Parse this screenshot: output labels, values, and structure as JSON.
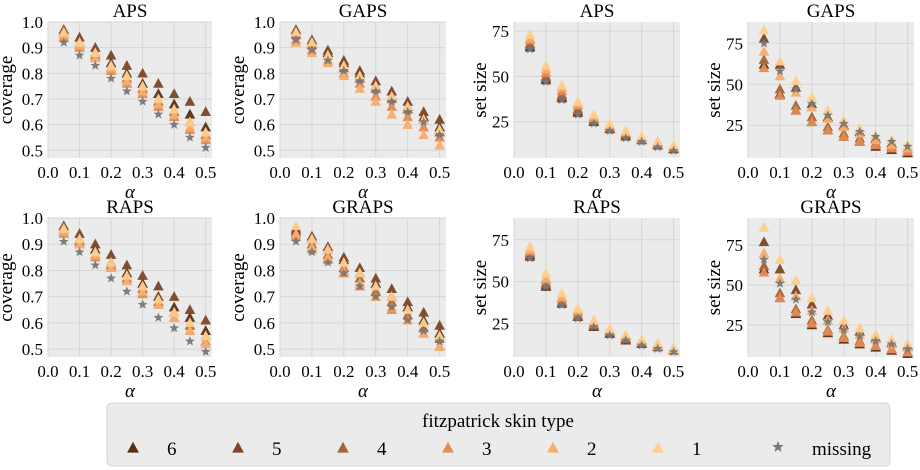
{
  "figure": {
    "legend": {
      "title": "fitzpatrick skin type",
      "placement": "bottom-center",
      "entries": [
        {
          "label": "6",
          "marker": "triangle",
          "color": "#5b2f14"
        },
        {
          "label": "5",
          "marker": "triangle",
          "color": "#7d4626"
        },
        {
          "label": "4",
          "marker": "triangle",
          "color": "#a8653a"
        },
        {
          "label": "3",
          "marker": "triangle",
          "color": "#e58b53"
        },
        {
          "label": "2",
          "marker": "triangle",
          "color": "#f6ad6e"
        },
        {
          "label": "1",
          "marker": "triangle",
          "color": "#fecf8f"
        },
        {
          "label": "missing",
          "marker": "star",
          "color": "#777777"
        }
      ]
    },
    "background": "#ebebeb",
    "grid": true
  },
  "chart_data": [
    {
      "type": "scatter",
      "title": "APS",
      "xlabel": "α",
      "ylabel": "coverage",
      "xlim": [
        0.0,
        0.52
      ],
      "ylim": [
        0.47,
        1.0
      ],
      "xticks": [
        "0.0",
        "0.1",
        "0.2",
        "0.3",
        "0.4",
        "0.5"
      ],
      "yticks": [
        "0.5",
        "0.6",
        "0.7",
        "0.8",
        "0.9",
        "1.0"
      ],
      "x": [
        0.05,
        0.1,
        0.15,
        0.2,
        0.25,
        0.3,
        0.35,
        0.4,
        0.45,
        0.5
      ],
      "series": [
        {
          "name": "6",
          "values": [
            0.96,
            0.92,
            0.88,
            0.84,
            0.8,
            0.76,
            0.72,
            0.68,
            0.64,
            0.59
          ]
        },
        {
          "name": "5",
          "values": [
            0.97,
            0.94,
            0.9,
            0.87,
            0.83,
            0.8,
            0.76,
            0.72,
            0.69,
            0.65
          ]
        },
        {
          "name": "4",
          "values": [
            0.95,
            0.91,
            0.87,
            0.82,
            0.78,
            0.74,
            0.69,
            0.65,
            0.61,
            0.56
          ]
        },
        {
          "name": "3",
          "values": [
            0.94,
            0.9,
            0.86,
            0.81,
            0.76,
            0.72,
            0.67,
            0.63,
            0.58,
            0.54
          ]
        },
        {
          "name": "2",
          "values": [
            0.95,
            0.91,
            0.86,
            0.82,
            0.77,
            0.73,
            0.68,
            0.64,
            0.59,
            0.55
          ]
        },
        {
          "name": "1",
          "values": [
            0.96,
            0.92,
            0.88,
            0.83,
            0.79,
            0.75,
            0.7,
            0.66,
            0.61,
            0.57
          ]
        },
        {
          "name": "missing",
          "values": [
            0.92,
            0.87,
            0.83,
            0.78,
            0.73,
            0.69,
            0.64,
            0.6,
            0.55,
            0.51
          ]
        }
      ]
    },
    {
      "type": "scatter",
      "title": "GAPS",
      "xlabel": "α",
      "ylabel": "coverage",
      "xlim": [
        0.0,
        0.52
      ],
      "ylim": [
        0.47,
        1.0
      ],
      "xticks": [
        "0.0",
        "0.1",
        "0.2",
        "0.3",
        "0.4",
        "0.5"
      ],
      "yticks": [
        "0.5",
        "0.6",
        "0.7",
        "0.8",
        "0.9",
        "1.0"
      ],
      "x": [
        0.05,
        0.1,
        0.15,
        0.2,
        0.25,
        0.3,
        0.35,
        0.4,
        0.45,
        0.5
      ],
      "series": [
        {
          "name": "6",
          "values": [
            0.96,
            0.92,
            0.88,
            0.84,
            0.8,
            0.75,
            0.71,
            0.67,
            0.63,
            0.59
          ]
        },
        {
          "name": "5",
          "values": [
            0.97,
            0.93,
            0.89,
            0.85,
            0.81,
            0.77,
            0.73,
            0.69,
            0.65,
            0.62
          ]
        },
        {
          "name": "4",
          "values": [
            0.95,
            0.91,
            0.87,
            0.82,
            0.78,
            0.74,
            0.7,
            0.66,
            0.62,
            0.57
          ]
        },
        {
          "name": "3",
          "values": [
            0.93,
            0.89,
            0.85,
            0.8,
            0.76,
            0.71,
            0.67,
            0.63,
            0.59,
            0.55
          ]
        },
        {
          "name": "2",
          "values": [
            0.92,
            0.88,
            0.84,
            0.79,
            0.74,
            0.69,
            0.64,
            0.6,
            0.56,
            0.52
          ]
        },
        {
          "name": "1",
          "values": [
            0.96,
            0.92,
            0.87,
            0.83,
            0.79,
            0.75,
            0.71,
            0.67,
            0.62,
            0.58
          ]
        },
        {
          "name": "missing",
          "values": [
            0.93,
            0.89,
            0.85,
            0.81,
            0.77,
            0.73,
            0.69,
            0.65,
            0.61,
            0.56
          ]
        }
      ]
    },
    {
      "type": "scatter",
      "title": "APS",
      "xlabel": "α",
      "ylabel": "set size",
      "xlim": [
        0.0,
        0.52
      ],
      "ylim": [
        5,
        80
      ],
      "xticks": [
        "0.0",
        "0.1",
        "0.2",
        "0.3",
        "0.4",
        "0.5"
      ],
      "yticks": [
        "25",
        "50",
        "75"
      ],
      "x": [
        0.05,
        0.1,
        0.15,
        0.2,
        0.25,
        0.3,
        0.35,
        0.4,
        0.45,
        0.5
      ],
      "series": [
        {
          "name": "6",
          "values": [
            66,
            48,
            38,
            30,
            25,
            21,
            17,
            15,
            12,
            10
          ]
        },
        {
          "name": "5",
          "values": [
            67,
            49,
            39,
            31,
            25,
            21,
            18,
            15,
            12,
            10
          ]
        },
        {
          "name": "4",
          "values": [
            68,
            50,
            40,
            32,
            26,
            22,
            18,
            15,
            13,
            11
          ]
        },
        {
          "name": "3",
          "values": [
            70,
            52,
            42,
            34,
            27,
            22,
            19,
            16,
            13,
            11
          ]
        },
        {
          "name": "2",
          "values": [
            71,
            54,
            44,
            35,
            28,
            23,
            19,
            16,
            14,
            11
          ]
        },
        {
          "name": "1",
          "values": [
            73,
            56,
            45,
            36,
            29,
            24,
            20,
            17,
            14,
            12
          ]
        },
        {
          "name": "missing",
          "values": [
            65,
            47,
            37,
            29,
            24,
            20,
            16,
            14,
            11,
            9
          ]
        }
      ]
    },
    {
      "type": "scatter",
      "title": "GAPS",
      "xlabel": "α",
      "ylabel": "set size",
      "xlim": [
        0.0,
        0.52
      ],
      "ylim": [
        5,
        88
      ],
      "xticks": [
        "0.0",
        "0.1",
        "0.2",
        "0.3",
        "0.4",
        "0.5"
      ],
      "yticks": [
        "25",
        "50",
        "75"
      ],
      "x": [
        0.05,
        0.1,
        0.15,
        0.2,
        0.25,
        0.3,
        0.35,
        0.4,
        0.45,
        0.5
      ],
      "series": [
        {
          "name": "6",
          "values": [
            62,
            44,
            34,
            27,
            22,
            18,
            15,
            12,
            10,
            8
          ]
        },
        {
          "name": "5",
          "values": [
            78,
            62,
            48,
            38,
            30,
            25,
            21,
            17,
            14,
            11
          ]
        },
        {
          "name": "4",
          "values": [
            65,
            47,
            37,
            30,
            24,
            20,
            17,
            14,
            12,
            9
          ]
        },
        {
          "name": "3",
          "values": [
            60,
            43,
            34,
            27,
            22,
            18,
            15,
            13,
            11,
            9
          ]
        },
        {
          "name": "2",
          "values": [
            70,
            55,
            45,
            36,
            29,
            24,
            20,
            16,
            13,
            11
          ]
        },
        {
          "name": "1",
          "values": [
            83,
            64,
            52,
            42,
            34,
            28,
            23,
            19,
            16,
            13
          ]
        },
        {
          "name": "missing",
          "values": [
            75,
            58,
            47,
            38,
            31,
            26,
            21,
            18,
            15,
            12
          ]
        }
      ]
    },
    {
      "type": "scatter",
      "title": "RAPS",
      "xlabel": "α",
      "ylabel": "coverage",
      "xlim": [
        0.0,
        0.52
      ],
      "ylim": [
        0.47,
        1.0
      ],
      "xticks": [
        "0.0",
        "0.1",
        "0.2",
        "0.3",
        "0.4",
        "0.5"
      ],
      "yticks": [
        "0.5",
        "0.6",
        "0.7",
        "0.8",
        "0.9",
        "1.0"
      ],
      "x": [
        0.05,
        0.1,
        0.15,
        0.2,
        0.25,
        0.3,
        0.35,
        0.4,
        0.45,
        0.5
      ],
      "series": [
        {
          "name": "6",
          "values": [
            0.96,
            0.92,
            0.88,
            0.83,
            0.79,
            0.75,
            0.7,
            0.66,
            0.62,
            0.57
          ]
        },
        {
          "name": "5",
          "values": [
            0.97,
            0.94,
            0.9,
            0.86,
            0.82,
            0.78,
            0.74,
            0.7,
            0.65,
            0.61
          ]
        },
        {
          "name": "4",
          "values": [
            0.95,
            0.91,
            0.86,
            0.82,
            0.77,
            0.73,
            0.68,
            0.64,
            0.59,
            0.55
          ]
        },
        {
          "name": "3",
          "values": [
            0.94,
            0.9,
            0.85,
            0.81,
            0.76,
            0.71,
            0.67,
            0.62,
            0.57,
            0.53
          ]
        },
        {
          "name": "2",
          "values": [
            0.95,
            0.9,
            0.86,
            0.81,
            0.76,
            0.72,
            0.67,
            0.62,
            0.57,
            0.52
          ]
        },
        {
          "name": "1",
          "values": [
            0.96,
            0.92,
            0.87,
            0.83,
            0.78,
            0.74,
            0.69,
            0.64,
            0.6,
            0.55
          ]
        },
        {
          "name": "missing",
          "values": [
            0.91,
            0.87,
            0.82,
            0.77,
            0.72,
            0.67,
            0.62,
            0.58,
            0.53,
            0.49
          ]
        }
      ]
    },
    {
      "type": "scatter",
      "title": "GRAPS",
      "xlabel": "α",
      "ylabel": "coverage",
      "xlim": [
        0.0,
        0.52
      ],
      "ylim": [
        0.47,
        1.0
      ],
      "xticks": [
        "0.0",
        "0.1",
        "0.2",
        "0.3",
        "0.4",
        "0.5"
      ],
      "yticks": [
        "0.5",
        "0.6",
        "0.7",
        "0.8",
        "0.9",
        "1.0"
      ],
      "x": [
        0.05,
        0.1,
        0.15,
        0.2,
        0.25,
        0.3,
        0.35,
        0.4,
        0.45,
        0.5
      ],
      "series": [
        {
          "name": "6",
          "values": [
            0.95,
            0.92,
            0.88,
            0.84,
            0.79,
            0.75,
            0.7,
            0.66,
            0.61,
            0.56
          ]
        },
        {
          "name": "5",
          "values": [
            0.96,
            0.93,
            0.89,
            0.85,
            0.81,
            0.77,
            0.73,
            0.68,
            0.64,
            0.59
          ]
        },
        {
          "name": "4",
          "values": [
            0.94,
            0.9,
            0.86,
            0.81,
            0.77,
            0.72,
            0.68,
            0.63,
            0.58,
            0.54
          ]
        },
        {
          "name": "3",
          "values": [
            0.93,
            0.88,
            0.84,
            0.79,
            0.74,
            0.7,
            0.65,
            0.61,
            0.56,
            0.51
          ]
        },
        {
          "name": "2",
          "values": [
            0.94,
            0.89,
            0.85,
            0.8,
            0.75,
            0.7,
            0.66,
            0.61,
            0.56,
            0.51
          ]
        },
        {
          "name": "1",
          "values": [
            0.97,
            0.92,
            0.88,
            0.83,
            0.79,
            0.74,
            0.7,
            0.65,
            0.6,
            0.55
          ]
        },
        {
          "name": "missing",
          "values": [
            0.91,
            0.87,
            0.83,
            0.79,
            0.74,
            0.7,
            0.66,
            0.61,
            0.57,
            0.53
          ]
        }
      ]
    },
    {
      "type": "scatter",
      "title": "RAPS",
      "xlabel": "α",
      "ylabel": "set size",
      "xlim": [
        0.0,
        0.52
      ],
      "ylim": [
        5,
        88
      ],
      "xticks": [
        "0.0",
        "0.1",
        "0.2",
        "0.3",
        "0.4",
        "0.5"
      ],
      "yticks": [
        "25",
        "50",
        "75"
      ],
      "x": [
        0.05,
        0.1,
        0.15,
        0.2,
        0.25,
        0.3,
        0.35,
        0.4,
        0.45,
        0.5
      ],
      "series": [
        {
          "name": "6",
          "values": [
            65,
            47,
            37,
            29,
            23,
            19,
            15,
            13,
            11,
            9
          ]
        },
        {
          "name": "5",
          "values": [
            66,
            48,
            37,
            29,
            24,
            19,
            16,
            13,
            11,
            9
          ]
        },
        {
          "name": "4",
          "values": [
            67,
            49,
            38,
            30,
            24,
            20,
            16,
            14,
            11,
            9
          ]
        },
        {
          "name": "3",
          "values": [
            68,
            51,
            40,
            32,
            25,
            21,
            17,
            14,
            12,
            10
          ]
        },
        {
          "name": "2",
          "values": [
            69,
            52,
            41,
            33,
            26,
            21,
            18,
            15,
            12,
            10
          ]
        },
        {
          "name": "1",
          "values": [
            71,
            55,
            43,
            34,
            27,
            22,
            18,
            15,
            13,
            10
          ]
        },
        {
          "name": "missing",
          "values": [
            64,
            47,
            36,
            28,
            23,
            18,
            15,
            12,
            10,
            8
          ]
        }
      ]
    },
    {
      "type": "scatter",
      "title": "GRAPS",
      "xlabel": "α",
      "ylabel": "set size",
      "xlim": [
        0.0,
        0.52
      ],
      "ylim": [
        5,
        92
      ],
      "xticks": [
        "0.0",
        "0.1",
        "0.2",
        "0.3",
        "0.4",
        "0.5"
      ],
      "yticks": [
        "25",
        "50",
        "75"
      ],
      "x": [
        0.05,
        0.1,
        0.15,
        0.2,
        0.25,
        0.3,
        0.35,
        0.4,
        0.45,
        0.5
      ],
      "series": [
        {
          "name": "6",
          "values": [
            60,
            42,
            32,
            25,
            20,
            16,
            13,
            11,
            9,
            7
          ]
        },
        {
          "name": "5",
          "values": [
            77,
            60,
            47,
            38,
            31,
            25,
            21,
            17,
            14,
            12
          ]
        },
        {
          "name": "4",
          "values": [
            62,
            45,
            35,
            28,
            22,
            18,
            15,
            12,
            10,
            8
          ]
        },
        {
          "name": "3",
          "values": [
            58,
            42,
            33,
            26,
            21,
            17,
            14,
            12,
            10,
            8
          ]
        },
        {
          "name": "2",
          "values": [
            70,
            54,
            43,
            34,
            28,
            23,
            19,
            16,
            13,
            11
          ]
        },
        {
          "name": "1",
          "values": [
            86,
            66,
            53,
            42,
            34,
            28,
            23,
            19,
            16,
            13
          ]
        },
        {
          "name": "missing",
          "values": [
            66,
            51,
            41,
            33,
            27,
            22,
            18,
            15,
            13,
            10
          ]
        }
      ]
    }
  ]
}
